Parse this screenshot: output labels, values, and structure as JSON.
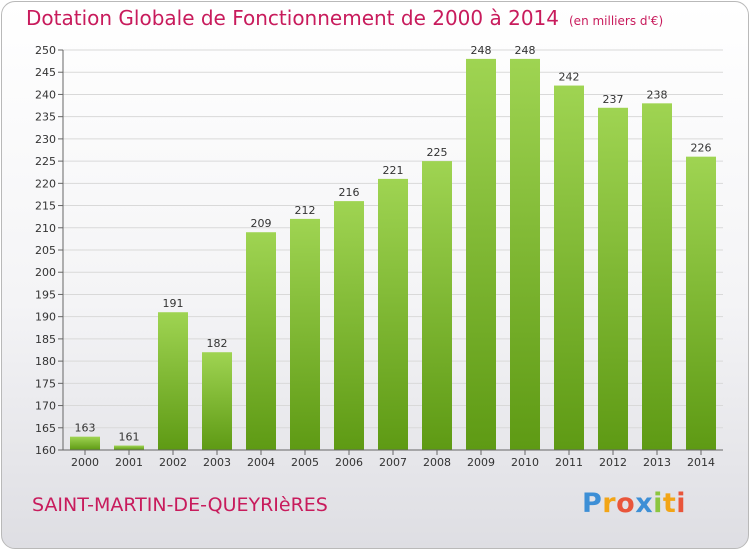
{
  "title": "Dotation Globale de Fonctionnement de 2000 à 2014",
  "unit": "(en milliers d'€)",
  "commune": "SAINT-MARTIN-DE-QUEYRIèRES",
  "logo": {
    "text": "Proxiti",
    "letters": [
      "P",
      "r",
      "o",
      "x",
      "i",
      "t",
      "i"
    ]
  },
  "colors": {
    "bar_top": "#9fd452",
    "bar_bottom": "#5e9a14",
    "title": "#c81b5c",
    "grid": "#d9d9d9",
    "axis": "#666666"
  },
  "chart_data": {
    "type": "bar",
    "title": "Dotation Globale de Fonctionnement de 2000 à 2014",
    "xlabel": "",
    "ylabel": "",
    "ylim": [
      160,
      250
    ],
    "ytick_step": 5,
    "grid": true,
    "categories": [
      "2000",
      "2001",
      "2002",
      "2003",
      "2004",
      "2005",
      "2006",
      "2007",
      "2008",
      "2009",
      "2010",
      "2011",
      "2012",
      "2013",
      "2014"
    ],
    "values": [
      163,
      161,
      191,
      182,
      209,
      212,
      216,
      221,
      225,
      248,
      248,
      242,
      237,
      238,
      226
    ]
  }
}
